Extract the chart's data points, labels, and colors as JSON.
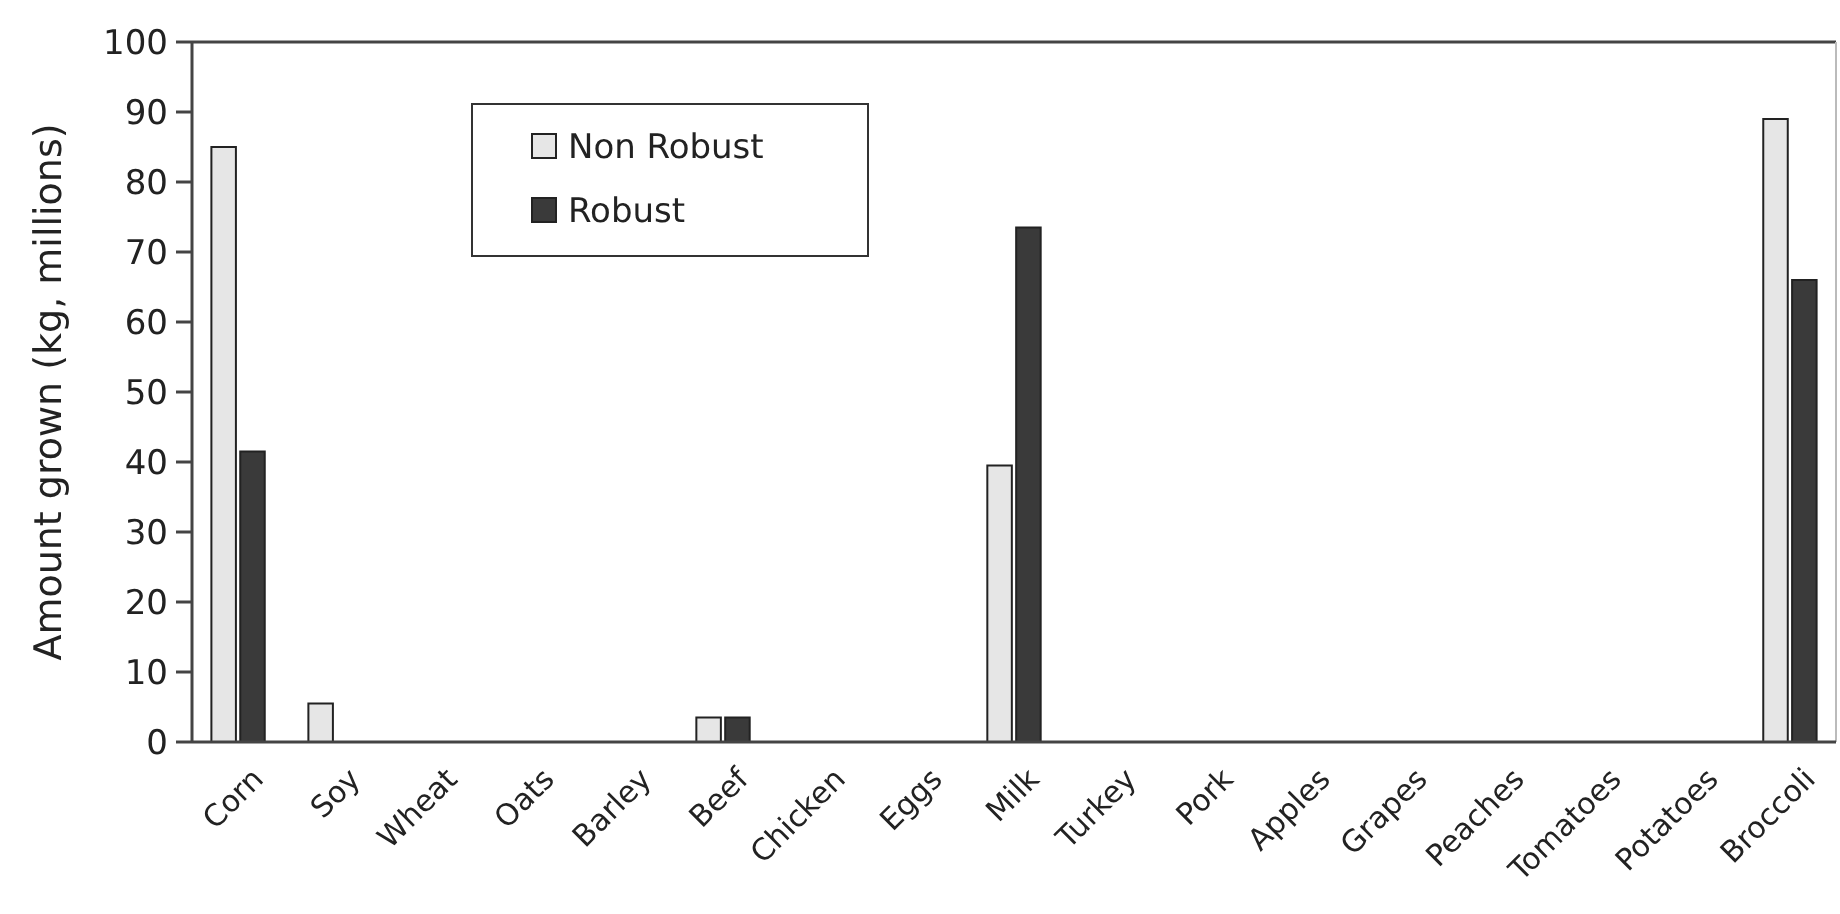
{
  "chart_data": {
    "type": "bar",
    "ylabel": "Amount grown (kg, millions)",
    "categories": [
      "Corn",
      "Soy",
      "Wheat",
      "Oats",
      "Barley",
      "Beef",
      "Chicken",
      "Eggs",
      "Milk",
      "Turkey",
      "Pork",
      "Apples",
      "Grapes",
      "Peaches",
      "Tomatoes",
      "Potatoes",
      "Broccoli"
    ],
    "series": [
      {
        "name": "Non Robust",
        "color": "#e6e6e6",
        "values": [
          85,
          5.5,
          0,
          0,
          0,
          3.5,
          0,
          0,
          39.5,
          0,
          0,
          0,
          0,
          0,
          0,
          0,
          89
        ]
      },
      {
        "name": "Robust",
        "color": "#3a3a3a",
        "values": [
          41.5,
          0,
          0,
          0,
          0,
          3.5,
          0,
          0,
          73.5,
          0,
          0,
          0,
          0,
          0,
          0,
          0,
          66
        ]
      }
    ],
    "ylim": [
      0,
      100
    ],
    "yticks": [
      0,
      10,
      20,
      30,
      40,
      50,
      60,
      70,
      80,
      90,
      100
    ],
    "grid": false,
    "legend": "top left"
  }
}
